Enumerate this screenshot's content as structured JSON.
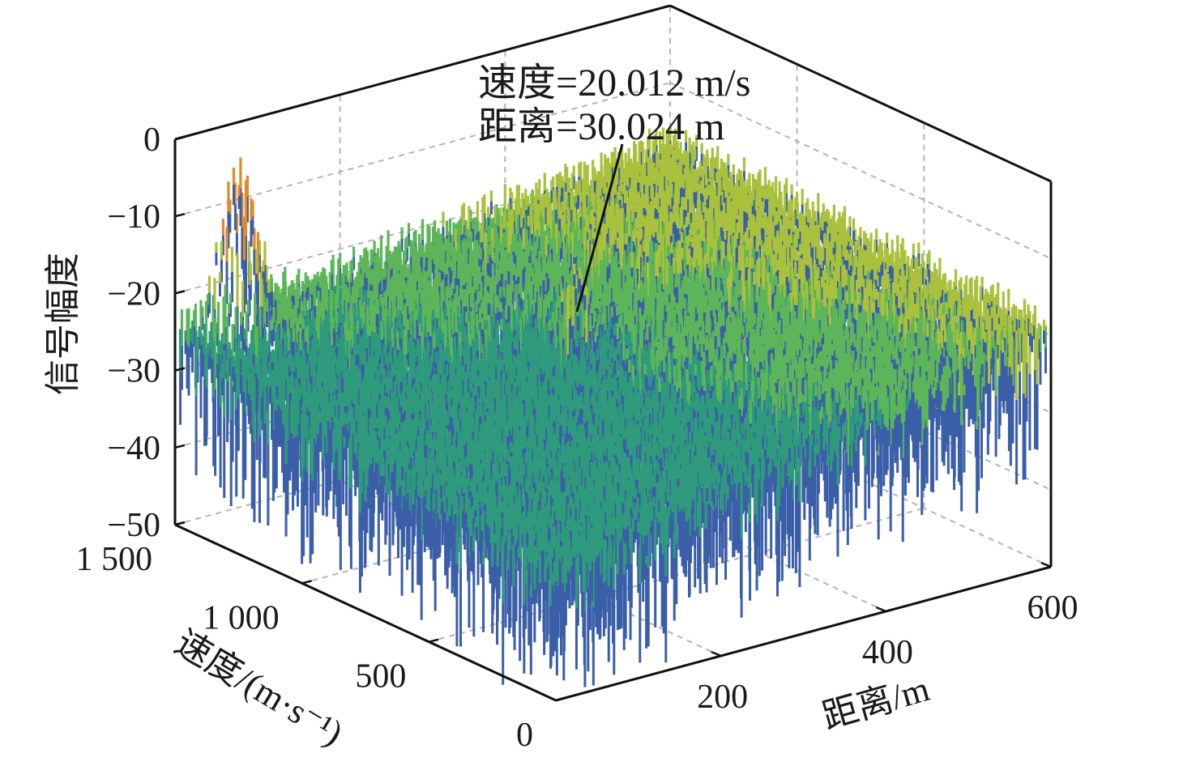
{
  "chart_data": {
    "type": "surface",
    "title": "",
    "xlabel": "距离/m",
    "ylabel": "速度/(m·s⁻¹)",
    "zlabel": "信号幅度",
    "xlim": [
      0,
      600
    ],
    "ylim": [
      0,
      1500
    ],
    "zlim": [
      -50,
      0
    ],
    "x_ticks": [
      "200",
      "400",
      "600"
    ],
    "x_tick_values": [
      200,
      400,
      600
    ],
    "y_ticks": [
      "0",
      "500",
      "1 000",
      "1 500"
    ],
    "y_tick_values": [
      0,
      500,
      1000,
      1500
    ],
    "z_ticks": [
      "0",
      "−10",
      "−20",
      "−30",
      "−40",
      "−50"
    ],
    "z_tick_values": [
      0,
      -10,
      -20,
      -30,
      -40,
      -50
    ],
    "grid": true,
    "colormap": "viridis-like (blue low, green mid, yellow/orange high)",
    "noise_floor_approx": -30,
    "peaks": [
      {
        "range": 30.024,
        "velocity": 20.012,
        "amplitude_approx": -22
      },
      {
        "range": 60,
        "velocity": 1450,
        "amplitude_approx": -7
      }
    ],
    "annotation": {
      "line1": "速度=20.012 m/s",
      "line2": "距离=30.024 m"
    },
    "colors": {
      "low": "#3b5ea8",
      "mid": "#2f9a7c",
      "high": "#5db55a",
      "peak": "#e08a2a",
      "axis": "#1a1a1a",
      "grid": "#b0b0b0"
    }
  }
}
